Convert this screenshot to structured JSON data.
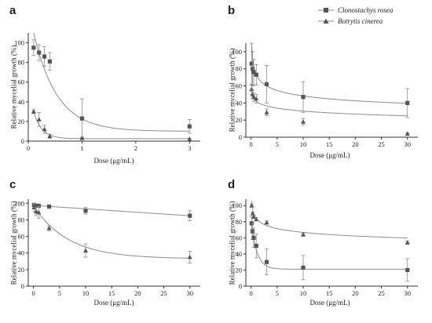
{
  "legend": {
    "items": [
      {
        "label": "Clonostachys rosea",
        "marker": "square"
      },
      {
        "label": "Botrytis cinerea",
        "marker": "triangle"
      }
    ]
  },
  "colors": {
    "line": "#8c8c8c",
    "marker": "#555555",
    "axis": "#333333"
  },
  "chart_data": [
    {
      "id": "a",
      "type": "scatter",
      "panel_label": "a",
      "xlabel": "Dose (μg/mL)",
      "ylabel": "Relative mycelial growth (%)",
      "xlim": [
        0,
        3.2
      ],
      "ylim": [
        0,
        110
      ],
      "xticks": [
        0,
        1,
        2,
        3
      ],
      "yticks": [
        0,
        20,
        40,
        60,
        80,
        100
      ],
      "series": [
        {
          "name": "Clonostachys rosea",
          "marker": "square",
          "x": [
            0.1,
            0.2,
            0.3,
            0.4,
            1,
            3
          ],
          "y": [
            95,
            90,
            86,
            81,
            23,
            15
          ],
          "err": [
            8,
            8,
            10,
            9,
            20,
            7
          ],
          "fit": {
            "type": "exp",
            "a": 126,
            "k": 2.3,
            "c": 10
          }
        },
        {
          "name": "Botrytis cinerea",
          "marker": "triangle",
          "x": [
            0.1,
            0.2,
            0.3,
            0.4,
            1,
            3
          ],
          "y": [
            30,
            22,
            12,
            5,
            3,
            2
          ],
          "err": [
            2,
            7,
            4,
            2,
            1,
            1
          ],
          "fit": {
            "type": "exp",
            "a": 52,
            "k": 6.5,
            "c": 2.5
          }
        }
      ]
    },
    {
      "id": "b",
      "type": "scatter",
      "panel_label": "b",
      "xlabel": "Dose (μg/mL)",
      "ylabel": "Relative mycelial growth (%)",
      "xlim": [
        -1,
        32
      ],
      "ylim": [
        0,
        110
      ],
      "xticks": [
        0,
        5,
        10,
        15,
        20,
        25,
        30
      ],
      "yticks": [
        0,
        20,
        40,
        60,
        80,
        100
      ],
      "series": [
        {
          "name": "Clonostachys rosea",
          "marker": "square",
          "x": [
            0.1,
            0.3,
            0.5,
            1,
            3,
            10,
            30
          ],
          "y": [
            86,
            80,
            76,
            73,
            62,
            47,
            40
          ],
          "err": [
            25,
            20,
            15,
            12,
            22,
            18,
            17
          ],
          "fit": {
            "type": "pow",
            "a": 73,
            "b": -0.18,
            "min": 0.1
          }
        },
        {
          "name": "Botrytis cinerea",
          "marker": "triangle",
          "x": [
            0.1,
            0.3,
            0.5,
            1,
            3,
            10,
            30
          ],
          "y": [
            56,
            50,
            47,
            45,
            29,
            18,
            4
          ],
          "err": [
            6,
            5,
            5,
            5,
            4,
            4,
            1
          ],
          "fit": {
            "type": "log",
            "a": 42,
            "b": -11.5,
            "min": 0.1
          }
        }
      ]
    },
    {
      "id": "c",
      "type": "scatter",
      "panel_label": "c",
      "xlabel": "Dose (μg/mL)",
      "ylabel": "Relative mycelial growth (%)",
      "xlim": [
        -1,
        32
      ],
      "ylim": [
        0,
        105
      ],
      "xticks": [
        0,
        5,
        10,
        15,
        20,
        25,
        30
      ],
      "yticks": [
        0,
        20,
        40,
        60,
        80,
        100
      ],
      "series": [
        {
          "name": "Clonostachys rosea",
          "marker": "square",
          "x": [
            0.1,
            0.5,
            1,
            3,
            10,
            30
          ],
          "y": [
            98,
            97,
            97,
            96,
            91,
            85
          ],
          "err": [
            2,
            2,
            2,
            2,
            4,
            6
          ],
          "fit": {
            "type": "lin",
            "a": 97.5,
            "b": -0.42
          }
        },
        {
          "name": "Botrytis cinerea",
          "marker": "triangle",
          "x": [
            0.1,
            0.5,
            1,
            3,
            10,
            30
          ],
          "y": [
            95,
            90,
            89,
            70,
            43,
            35
          ],
          "err": [
            5,
            5,
            7,
            3,
            8,
            7
          ],
          "fit": {
            "type": "exp",
            "a": 64,
            "k": 0.15,
            "c": 33
          }
        }
      ]
    },
    {
      "id": "d",
      "type": "scatter",
      "panel_label": "d",
      "xlabel": "Dose (μg/mL)",
      "ylabel": "Relative mycelial growth (%)",
      "xlim": [
        -1,
        32
      ],
      "ylim": [
        0,
        108
      ],
      "xticks": [
        0,
        5,
        10,
        15,
        20,
        25,
        30
      ],
      "yticks": [
        0,
        20,
        40,
        60,
        80,
        100
      ],
      "series": [
        {
          "name": "Clonostachys rosea",
          "marker": "square",
          "x": [
            0.1,
            0.3,
            0.5,
            1,
            3,
            10,
            30
          ],
          "y": [
            78,
            68,
            60,
            50,
            30,
            23,
            20
          ],
          "err": [
            8,
            10,
            12,
            15,
            16,
            15,
            14
          ],
          "fit": {
            "type": "exp",
            "a": 60,
            "k": 0.9,
            "c": 21
          }
        },
        {
          "name": "Botrytis cinerea",
          "marker": "triangle",
          "x": [
            0.1,
            0.3,
            0.5,
            1,
            3,
            10,
            30
          ],
          "y": [
            100,
            90,
            86,
            83,
            79,
            64,
            54
          ],
          "err": [
            2,
            2,
            2,
            2,
            2,
            2,
            2
          ],
          "fit": {
            "type": "pow",
            "a": 84,
            "b": -0.1,
            "min": 0.1
          }
        }
      ]
    }
  ]
}
